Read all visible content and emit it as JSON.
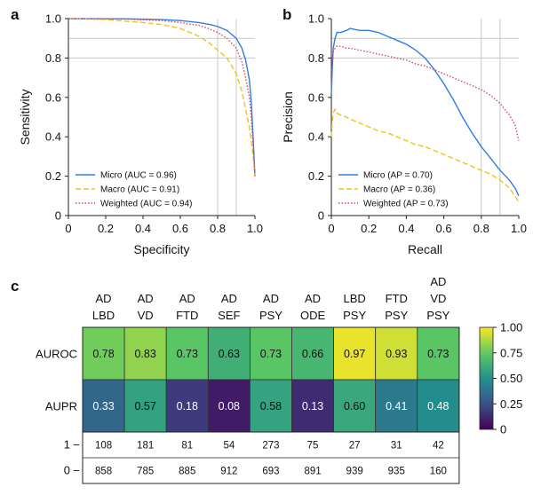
{
  "panels": {
    "a": "a",
    "b": "b",
    "c": "c"
  },
  "chart_data": [
    {
      "type": "line",
      "panel": "a",
      "xlabel": "Specificity",
      "ylabel": "Sensitivity",
      "xlim": [
        0,
        1
      ],
      "ylim": [
        0,
        1
      ],
      "xticks": [
        "0",
        "0.2",
        "0.4",
        "0.6",
        "0.8",
        "1.0"
      ],
      "yticks": [
        "0",
        "0.2",
        "0.4",
        "0.6",
        "0.8",
        "1.0"
      ],
      "reference_lines": {
        "vertical": [
          0.8,
          0.9
        ],
        "horizontal": [
          0.8,
          0.9
        ]
      },
      "legend_position": "bottom-left",
      "series": [
        {
          "name": "Micro (AUC = 0.96)",
          "color": "#2e7ee0",
          "style": "solid",
          "x": [
            0,
            0.3,
            0.5,
            0.6,
            0.7,
            0.76,
            0.8,
            0.85,
            0.9,
            0.93,
            0.95,
            0.97,
            0.98,
            0.99,
            1.0
          ],
          "y": [
            1.0,
            0.999,
            0.995,
            0.99,
            0.98,
            0.97,
            0.96,
            0.94,
            0.9,
            0.85,
            0.79,
            0.69,
            0.58,
            0.4,
            0.2
          ]
        },
        {
          "name": "Macro (AUC = 0.91)",
          "color": "#f2c21b",
          "style": "dashed",
          "x": [
            0,
            0.2,
            0.4,
            0.5,
            0.6,
            0.7,
            0.75,
            0.8,
            0.85,
            0.9,
            0.93,
            0.95,
            0.97,
            0.98,
            0.99,
            1.0
          ],
          "y": [
            1.0,
            0.995,
            0.98,
            0.97,
            0.95,
            0.91,
            0.88,
            0.84,
            0.8,
            0.72,
            0.63,
            0.54,
            0.45,
            0.38,
            0.3,
            0.2
          ]
        },
        {
          "name": "Weighted (AUC = 0.94)",
          "color": "#d9456b",
          "style": "dotted",
          "x": [
            0,
            0.3,
            0.5,
            0.6,
            0.7,
            0.75,
            0.8,
            0.85,
            0.9,
            0.93,
            0.95,
            0.97,
            0.98,
            0.99,
            1.0
          ],
          "y": [
            1.0,
            0.998,
            0.99,
            0.98,
            0.965,
            0.95,
            0.93,
            0.9,
            0.85,
            0.78,
            0.7,
            0.6,
            0.5,
            0.36,
            0.2
          ]
        }
      ]
    },
    {
      "type": "line",
      "panel": "b",
      "xlabel": "Recall",
      "ylabel": "Precision",
      "xlim": [
        0,
        1
      ],
      "ylim": [
        0,
        1
      ],
      "xticks": [
        "0",
        "0.2",
        "0.4",
        "0.6",
        "0.8",
        "1.0"
      ],
      "yticks": [
        "0",
        "0.2",
        "0.4",
        "0.6",
        "0.8",
        "1.0"
      ],
      "reference_lines": {
        "vertical": [
          0.8,
          0.9
        ],
        "horizontal": [
          0.8,
          0.9
        ]
      },
      "legend_position": "bottom-left",
      "series": [
        {
          "name": "Micro (AP = 0.70)",
          "color": "#2e7ee0",
          "style": "solid",
          "x": [
            0,
            0.005,
            0.01,
            0.02,
            0.03,
            0.05,
            0.08,
            0.1,
            0.15,
            0.2,
            0.25,
            0.3,
            0.35,
            0.4,
            0.45,
            0.5,
            0.55,
            0.6,
            0.65,
            0.7,
            0.75,
            0.8,
            0.85,
            0.9,
            0.95,
            0.98,
            1.0
          ],
          "y": [
            0.62,
            0.75,
            0.85,
            0.9,
            0.93,
            0.93,
            0.94,
            0.95,
            0.94,
            0.94,
            0.93,
            0.91,
            0.89,
            0.87,
            0.84,
            0.8,
            0.74,
            0.67,
            0.59,
            0.5,
            0.42,
            0.35,
            0.29,
            0.23,
            0.18,
            0.14,
            0.1
          ]
        },
        {
          "name": "Macro (AP = 0.36)",
          "color": "#f2c21b",
          "style": "dashed",
          "x": [
            0,
            0.005,
            0.01,
            0.02,
            0.03,
            0.05,
            0.08,
            0.1,
            0.15,
            0.2,
            0.25,
            0.3,
            0.35,
            0.4,
            0.45,
            0.5,
            0.55,
            0.6,
            0.65,
            0.7,
            0.75,
            0.8,
            0.85,
            0.9,
            0.95,
            1.0
          ],
          "y": [
            0.4,
            0.48,
            0.52,
            0.54,
            0.52,
            0.51,
            0.5,
            0.49,
            0.47,
            0.45,
            0.43,
            0.42,
            0.4,
            0.38,
            0.36,
            0.35,
            0.33,
            0.31,
            0.29,
            0.27,
            0.25,
            0.23,
            0.21,
            0.18,
            0.14,
            0.07
          ]
        },
        {
          "name": "Weighted (AP = 0.73)",
          "color": "#d9456b",
          "style": "dotted",
          "x": [
            0,
            0.005,
            0.01,
            0.02,
            0.03,
            0.05,
            0.08,
            0.1,
            0.15,
            0.2,
            0.25,
            0.3,
            0.35,
            0.4,
            0.45,
            0.5,
            0.55,
            0.6,
            0.65,
            0.7,
            0.75,
            0.8,
            0.85,
            0.9,
            0.95,
            0.98,
            1.0
          ],
          "y": [
            0.72,
            0.78,
            0.83,
            0.85,
            0.86,
            0.86,
            0.85,
            0.85,
            0.84,
            0.83,
            0.82,
            0.81,
            0.8,
            0.79,
            0.77,
            0.76,
            0.74,
            0.72,
            0.7,
            0.68,
            0.66,
            0.64,
            0.61,
            0.57,
            0.51,
            0.46,
            0.38
          ]
        }
      ]
    },
    {
      "type": "heatmap",
      "panel": "c",
      "columns": [
        [
          "AD",
          "LBD"
        ],
        [
          "AD",
          "VD"
        ],
        [
          "AD",
          "FTD"
        ],
        [
          "AD",
          "SEF"
        ],
        [
          "AD",
          "PSY"
        ],
        [
          "AD",
          "ODE"
        ],
        [
          "LBD",
          "PSY"
        ],
        [
          "FTD",
          "PSY"
        ],
        [
          "AD",
          "VD",
          "PSY"
        ]
      ],
      "rows": [
        "AUROC",
        "AUPR"
      ],
      "values": [
        [
          0.78,
          0.83,
          0.73,
          0.63,
          0.73,
          0.66,
          0.97,
          0.93,
          0.73
        ],
        [
          0.33,
          0.57,
          0.18,
          0.08,
          0.58,
          0.13,
          0.6,
          0.41,
          0.48
        ]
      ],
      "value_labels": [
        [
          "0.78",
          "0.83",
          "0.73",
          "0.63",
          "0.73",
          "0.66",
          "0.97",
          "0.93",
          "0.73"
        ],
        [
          "0.33",
          "0.57",
          "0.18",
          "0.08",
          "0.58",
          "0.13",
          "0.60",
          "0.41",
          "0.48"
        ]
      ],
      "colorscale": "viridis",
      "colorbar": {
        "min": 0,
        "max": 1,
        "ticks": [
          "1.00",
          "0.75",
          "0.50",
          "0.25",
          "0"
        ]
      },
      "count_rows": [
        {
          "label": "1",
          "values": [
            "108",
            "181",
            "81",
            "54",
            "273",
            "75",
            "27",
            "31",
            "42"
          ]
        },
        {
          "label": "0",
          "values": [
            "858",
            "785",
            "885",
            "912",
            "693",
            "891",
            "939",
            "935",
            "160"
          ]
        }
      ]
    }
  ]
}
